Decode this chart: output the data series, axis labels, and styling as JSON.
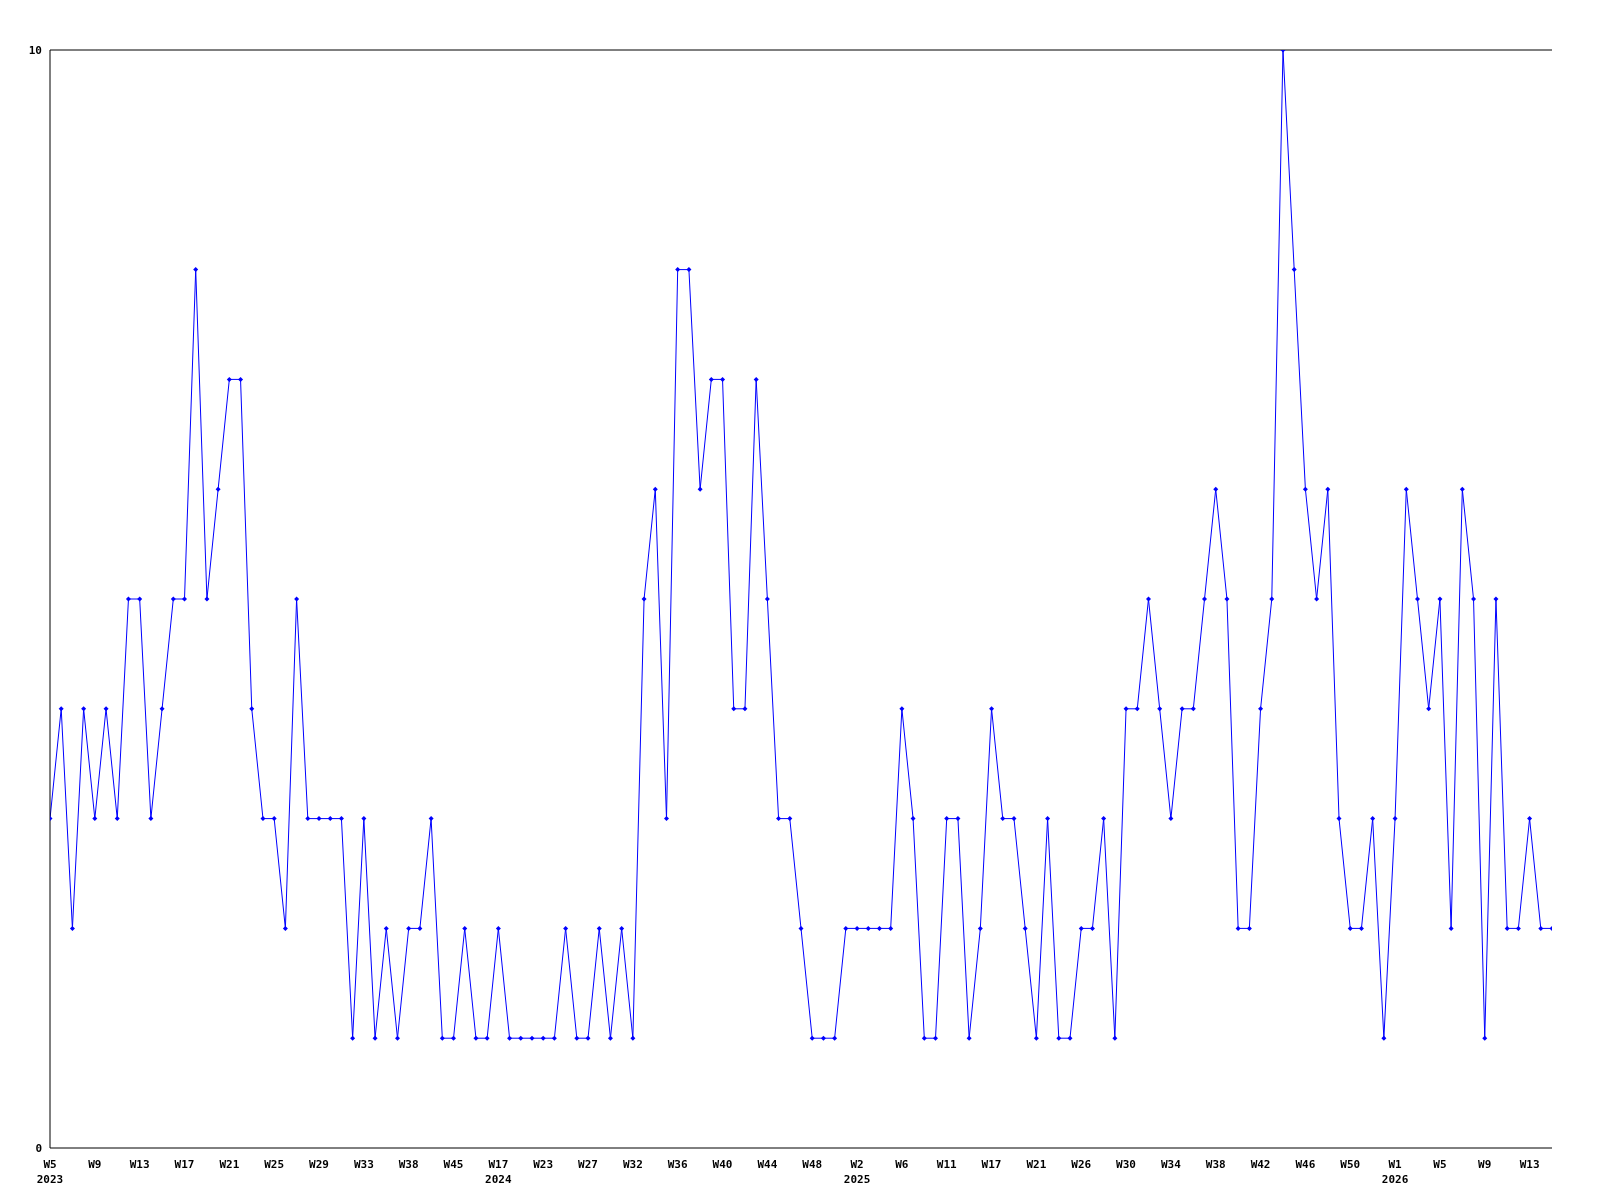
{
  "chart_data": {
    "type": "line",
    "categories": [
      "W5\n2023",
      null,
      null,
      null,
      "W9",
      null,
      null,
      null,
      "W13",
      null,
      null,
      null,
      "W17",
      null,
      null,
      null,
      "W21",
      null,
      null,
      null,
      "W25",
      null,
      null,
      null,
      "W29",
      null,
      null,
      null,
      "W33",
      null,
      null,
      null,
      "W38",
      null,
      null,
      null,
      "W45",
      null,
      null,
      null,
      "W17\n2024",
      null,
      null,
      null,
      "W23",
      null,
      null,
      null,
      "W27",
      null,
      null,
      null,
      "W32",
      null,
      null,
      null,
      "W36",
      null,
      null,
      null,
      "W40",
      null,
      null,
      null,
      "W44",
      null,
      null,
      null,
      "W48",
      null,
      null,
      null,
      "W2\n2025",
      null,
      null,
      null,
      "W6",
      null,
      null,
      null,
      "W11",
      null,
      null,
      null,
      "W17",
      null,
      null,
      null,
      "W21",
      null,
      null,
      null,
      "W26",
      null,
      null,
      null,
      "W30",
      null,
      null,
      null,
      "W34",
      null,
      null,
      null,
      "W38",
      null,
      null,
      null,
      "W42",
      null,
      null,
      null,
      "W46",
      null,
      null,
      null,
      "W50",
      null,
      null,
      null,
      "W1\n2026",
      null,
      null,
      null,
      "W5",
      null,
      null,
      null,
      "W9",
      null,
      null,
      null,
      "W13",
      null,
      null
    ],
    "series": [
      {
        "color": "#0000ff",
        "values": [
          3,
          4,
          2,
          4,
          3,
          4,
          3,
          5,
          5,
          3,
          4,
          5,
          5,
          8,
          5,
          6,
          7,
          7,
          4,
          3,
          3,
          2,
          5,
          3,
          3,
          3,
          3,
          1,
          3,
          1,
          2,
          1,
          2,
          2,
          3,
          1,
          1,
          2,
          1,
          1,
          2,
          1,
          1,
          1,
          1,
          1,
          2,
          1,
          1,
          2,
          1,
          2,
          1,
          5,
          6,
          3,
          8,
          8,
          6,
          7,
          7,
          4,
          4,
          7,
          5,
          3,
          3,
          2,
          1,
          1,
          1,
          2,
          2,
          2,
          2,
          2,
          4,
          3,
          1,
          1,
          3,
          3,
          1,
          2,
          4,
          3,
          3,
          2,
          1,
          3,
          1,
          1,
          2,
          2,
          3,
          1,
          4,
          4,
          5,
          4,
          3,
          4,
          4,
          5,
          6,
          5,
          2,
          2,
          4,
          5,
          10,
          8,
          6,
          5,
          6,
          3,
          2,
          2,
          3,
          1,
          3,
          6,
          5,
          4,
          5,
          2,
          6,
          5,
          1,
          5,
          2,
          2,
          3,
          2,
          2
        ]
      }
    ],
    "ylim": [
      0,
      10
    ],
    "yticks": [
      0,
      10
    ],
    "marker": "diamond",
    "line_style": "solid"
  }
}
